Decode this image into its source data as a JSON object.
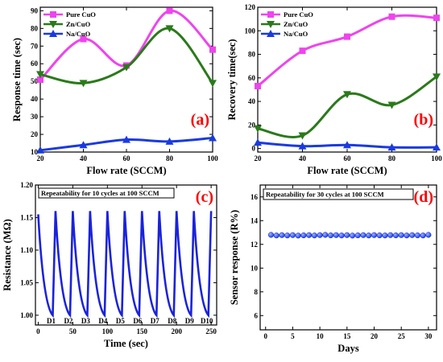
{
  "panel_colors": {
    "label": "#ff0000",
    "pure": "#ee44ee",
    "zn": "#2a7a1a",
    "na": "#1a3ae0",
    "rep_line": "#1a22dd",
    "rep_marker": "#2040ff"
  },
  "chart_data": [
    {
      "type": "line",
      "panel_label": "(a)",
      "xlabel": "Flow rate (SCCM)",
      "ylabel": "Response time (sec)",
      "xlim": [
        20,
        100
      ],
      "ylim": [
        10,
        92
      ],
      "xticks": [
        20,
        40,
        60,
        80,
        100
      ],
      "yticks": [
        10,
        20,
        30,
        40,
        50,
        60,
        70,
        80,
        90
      ],
      "x": [
        20,
        40,
        60,
        80,
        100
      ],
      "legend_placement": "top-left",
      "series": [
        {
          "name": "Pure CuO",
          "values": [
            51,
            74,
            59,
            90,
            68
          ],
          "marker": "square"
        },
        {
          "name": "Zn/CuO",
          "values": [
            54,
            49,
            58,
            80,
            49
          ],
          "marker": "triangle-down"
        },
        {
          "name": "Na/CuO",
          "values": [
            11,
            14,
            17,
            16,
            18
          ],
          "marker": "triangle-up"
        }
      ]
    },
    {
      "type": "line",
      "panel_label": "(b)",
      "xlabel": "Flow rate (SCCM)",
      "ylabel": "Recovery time(sec)",
      "xlim": [
        20,
        100
      ],
      "ylim": [
        -3,
        120
      ],
      "xticks": [
        20,
        40,
        60,
        80,
        100
      ],
      "yticks": [
        0,
        20,
        40,
        60,
        80,
        100,
        120
      ],
      "x": [
        20,
        40,
        60,
        80,
        100
      ],
      "legend_placement": "top-left",
      "series": [
        {
          "name": "Pure CuO",
          "values": [
            53,
            83,
            95,
            112,
            111
          ],
          "marker": "square"
        },
        {
          "name": "Zn/CuO",
          "values": [
            17,
            11,
            46,
            37,
            61
          ],
          "marker": "triangle-down"
        },
        {
          "name": "Na/CuO",
          "values": [
            5,
            2,
            3,
            1,
            1
          ],
          "marker": "triangle-up"
        }
      ]
    },
    {
      "type": "line",
      "panel_label": "(c)",
      "annotation": "Repeatability  for 10 cycles at 100 SCCM",
      "xlabel": "Time (sec)",
      "ylabel": "Resistance (MΩ)",
      "xlim": [
        -4,
        258
      ],
      "ylim": [
        0.985,
        1.2
      ],
      "xticks": [
        0,
        50,
        100,
        150,
        200,
        250
      ],
      "yticks": [
        1.0,
        1.05,
        1.1,
        1.15,
        1.2
      ],
      "ytick_labels": [
        "1.00",
        "1.05",
        "1.10",
        "1.15",
        "1.20"
      ],
      "cycles": [
        {
          "label": "D1",
          "peak_start": 0,
          "trough": 21,
          "peak_end": 25
        },
        {
          "label": "D2",
          "trough": 46,
          "peak_end": 50
        },
        {
          "label": "D3",
          "trough": 71,
          "peak_end": 75
        },
        {
          "label": "D4",
          "trough": 96,
          "peak_end": 100
        },
        {
          "label": "D5",
          "trough": 121,
          "peak_end": 125
        },
        {
          "label": "D6",
          "trough": 146,
          "peak_end": 150
        },
        {
          "label": "D7",
          "trough": 171,
          "peak_end": 175
        },
        {
          "label": "D8",
          "trough": 196,
          "peak_end": 200
        },
        {
          "label": "D9",
          "trough": 221,
          "peak_end": 225
        },
        {
          "label": "D10",
          "trough": 246,
          "peak_end": 250
        }
      ],
      "peak_value": 1.16,
      "first_peak_value": 1.155,
      "trough_value": 1.0
    },
    {
      "type": "scatter",
      "panel_label": "(d)",
      "annotation": "Repeatability  for 30 cycles at 100 SCCM",
      "xlabel": "Days",
      "ylabel": "Sensor response (R%)",
      "xlim": [
        -1,
        31.5
      ],
      "ylim": [
        4.8,
        17
      ],
      "xticks": [
        0,
        5,
        10,
        15,
        20,
        25,
        30
      ],
      "yticks": [
        6,
        8,
        10,
        12,
        14,
        16
      ],
      "x": [
        1,
        2,
        3,
        4,
        5,
        6,
        7,
        8,
        9,
        10,
        11,
        12,
        13,
        14,
        15,
        16,
        17,
        18,
        19,
        20,
        21,
        22,
        23,
        24,
        25,
        26,
        27,
        28,
        29,
        30
      ],
      "values": [
        12.8,
        12.75,
        12.78,
        12.75,
        12.78,
        12.74,
        12.76,
        12.78,
        12.75,
        12.78,
        12.8,
        12.76,
        12.78,
        12.75,
        12.78,
        12.74,
        12.76,
        12.78,
        12.75,
        12.78,
        12.76,
        12.75,
        12.78,
        12.76,
        12.78,
        12.75,
        12.78,
        12.76,
        12.75,
        12.8
      ]
    }
  ]
}
